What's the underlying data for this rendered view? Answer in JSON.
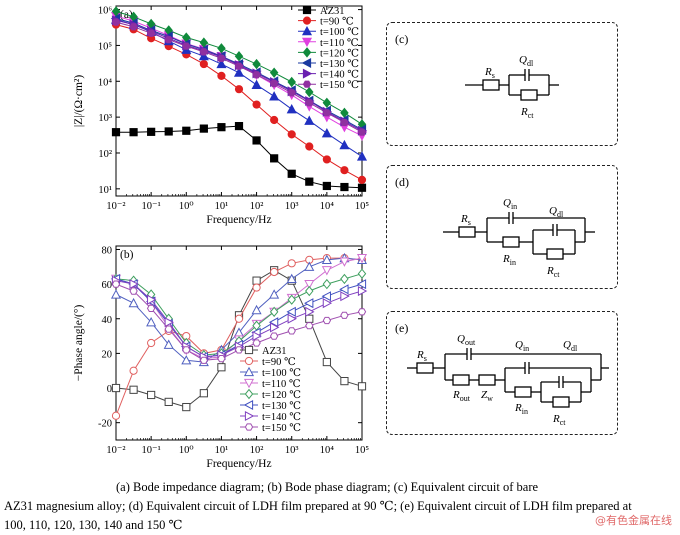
{
  "chart_data": [
    {
      "type": "line",
      "panel_label": "(a)",
      "xlabel": "Frequency/Hz",
      "ylabel": "|Z|/(Ω·cm²)",
      "xscale": "log",
      "yscale": "log",
      "xlim_exp": [
        -2,
        5
      ],
      "ylim_exp": [
        0.8,
        6.1
      ],
      "x_tick_labels": [
        "10⁻²",
        "10⁻¹",
        "10⁰",
        "10¹",
        "10²",
        "10³",
        "10⁴",
        "10⁵"
      ],
      "y_tick_labels": [
        "10¹",
        "10²",
        "10³",
        "10⁴",
        "10⁵",
        "10⁶"
      ],
      "legend_position": "top-right",
      "x_log10": [
        -2,
        -1.5,
        -1,
        -0.5,
        0,
        0.5,
        1,
        1.5,
        2,
        2.5,
        3,
        3.5,
        4,
        4.5,
        5
      ],
      "series": [
        {
          "name": "AZ31",
          "color": "#000000",
          "marker": "square",
          "log10_y": [
            2.58,
            2.58,
            2.59,
            2.6,
            2.62,
            2.68,
            2.72,
            2.75,
            2.35,
            1.85,
            1.42,
            1.2,
            1.08,
            1.05,
            1.03
          ]
        },
        {
          "name": "t=90 ℃",
          "color": "#e02020",
          "marker": "circle",
          "log10_y": [
            5.58,
            5.45,
            5.2,
            4.98,
            4.75,
            4.48,
            4.15,
            3.78,
            3.35,
            2.92,
            2.52,
            2.18,
            1.82,
            1.52,
            1.25
          ]
        },
        {
          "name": "t=100 ℃",
          "color": "#2030c0",
          "marker": "triangle-up",
          "log10_y": [
            5.72,
            5.58,
            5.38,
            5.12,
            4.88,
            4.7,
            4.48,
            4.24,
            3.9,
            3.58,
            3.22,
            2.9,
            2.55,
            2.22,
            1.9
          ]
        },
        {
          "name": "t=110 ℃",
          "color": "#e040e0",
          "marker": "triangle-down",
          "log10_y": [
            5.82,
            5.68,
            5.48,
            5.28,
            5.05,
            4.9,
            4.7,
            4.45,
            4.18,
            3.9,
            3.62,
            3.3,
            3.0,
            2.72,
            2.48
          ]
        },
        {
          "name": "t=120 ℃",
          "color": "#108a3c",
          "marker": "diamond",
          "log10_y": [
            5.95,
            5.8,
            5.6,
            5.42,
            5.22,
            5.08,
            4.92,
            4.7,
            4.48,
            4.24,
            3.98,
            3.7,
            3.4,
            3.12,
            2.8
          ]
        },
        {
          "name": "t=130 ℃",
          "color": "#1a3aa0",
          "marker": "triangle-left",
          "log10_y": [
            5.75,
            5.62,
            5.42,
            5.25,
            5.04,
            4.88,
            4.7,
            4.48,
            4.25,
            4.0,
            3.75,
            3.46,
            3.18,
            2.92,
            2.65
          ]
        },
        {
          "name": "t=140 ℃",
          "color": "#6a20b0",
          "marker": "triangle-right",
          "log10_y": [
            5.7,
            5.58,
            5.4,
            5.2,
            5.0,
            4.85,
            4.68,
            4.45,
            4.22,
            3.98,
            3.72,
            3.45,
            3.15,
            2.88,
            2.62
          ]
        },
        {
          "name": "t=150 ℃",
          "color": "#9030a0",
          "marker": "hexagon",
          "log10_y": [
            5.65,
            5.52,
            5.34,
            5.16,
            4.98,
            4.82,
            4.64,
            4.42,
            4.18,
            3.94,
            3.68,
            3.4,
            3.12,
            2.85,
            2.58
          ]
        }
      ]
    },
    {
      "type": "line",
      "panel_label": "(b)",
      "xlabel": "Frequency/Hz",
      "ylabel": "−Phase angle/(°)",
      "xscale": "log",
      "xlim_exp": [
        -2,
        5
      ],
      "ylim": [
        -30,
        82
      ],
      "y_ticks": [
        -20,
        0,
        20,
        40,
        60,
        80
      ],
      "x_tick_labels": [
        "10⁻²",
        "10⁻¹",
        "10⁰",
        "10¹",
        "10²",
        "10³",
        "10⁴",
        "10⁵"
      ],
      "legend_position": "bottom-center",
      "x_log10": [
        -2,
        -1.5,
        -1,
        -0.5,
        0,
        0.5,
        1,
        1.5,
        2,
        2.5,
        3,
        3.5,
        4,
        4.5,
        5
      ],
      "series": [
        {
          "name": "AZ31",
          "color": "#444444",
          "marker": "square",
          "y": [
            0,
            -1,
            -4,
            -8,
            -11,
            -3,
            12,
            42,
            62,
            68,
            62,
            40,
            15,
            4,
            1
          ]
        },
        {
          "name": "t=90 ℃",
          "color": "#e06060",
          "marker": "circle",
          "y": [
            -16,
            10,
            26,
            33,
            30,
            20,
            22,
            40,
            58,
            67,
            72,
            74,
            75,
            75,
            74
          ]
        },
        {
          "name": "t=100 ℃",
          "color": "#5060c0",
          "marker": "triangle-up",
          "y": [
            54,
            49,
            38,
            25,
            16,
            15,
            22,
            32,
            45,
            54,
            63,
            70,
            74,
            75,
            74
          ]
        },
        {
          "name": "t=110 ℃",
          "color": "#d070d0",
          "marker": "triangle-down",
          "y": [
            63,
            60,
            50,
            35,
            22,
            17,
            18,
            28,
            37,
            44,
            52,
            60,
            68,
            73,
            75
          ]
        },
        {
          "name": "t=120 ℃",
          "color": "#40a060",
          "marker": "diamond",
          "y": [
            63,
            62,
            54,
            40,
            26,
            19,
            20,
            27,
            36,
            44,
            51,
            56,
            60,
            63,
            66
          ]
        },
        {
          "name": "t=130 ℃",
          "color": "#4050c0",
          "marker": "triangle-left",
          "y": [
            63,
            60,
            50,
            37,
            24,
            18,
            19,
            25,
            32,
            38,
            44,
            49,
            53,
            57,
            60
          ]
        },
        {
          "name": "t=140 ℃",
          "color": "#8040c0",
          "marker": "triangle-right",
          "y": [
            62,
            60,
            51,
            38,
            24,
            18,
            19,
            24,
            30,
            35,
            40,
            44,
            49,
            53,
            56
          ]
        },
        {
          "name": "t=150 ℃",
          "color": "#a050b0",
          "marker": "hexagon",
          "y": [
            60,
            56,
            46,
            34,
            22,
            16,
            17,
            22,
            26,
            30,
            33,
            36,
            39,
            42,
            44
          ]
        }
      ]
    }
  ],
  "circuits": {
    "c": {
      "label": "(c)",
      "rs_main": "R",
      "rs_sub": "s",
      "q_main": "Q",
      "q_sub": "dl",
      "r_main": "R",
      "r_sub": "ct"
    },
    "d": {
      "label": "(d)",
      "rs_main": "R",
      "rs_sub": "s",
      "qin_main": "Q",
      "qin_sub": "in",
      "rin_main": "R",
      "rin_sub": "in",
      "qdl_main": "Q",
      "qdl_sub": "dl",
      "rct_main": "R",
      "rct_sub": "ct"
    },
    "e": {
      "label": "(e)",
      "rs_main": "R",
      "rs_sub": "s",
      "qout_main": "Q",
      "qout_sub": "out",
      "rout_main": "R",
      "rout_sub": "out",
      "zw_main": "Z",
      "zw_sub": "w",
      "qin_main": "Q",
      "qin_sub": "in",
      "rin_main": "R",
      "rin_sub": "in",
      "qdl_main": "Q",
      "qdl_sub": "dl",
      "rct_main": "R",
      "rct_sub": "ct"
    }
  },
  "caption": {
    "line1": "(a) Bode impedance diagram; (b) Bode phase diagram; (c) Equivalent circuit of bare",
    "line2": "AZ31 magnesium alloy; (d) Equivalent circuit of LDH film prepared at 90 ℃; (e) Equivalent circuit of LDH film prepared at",
    "line3": "100, 110, 120, 130, 140 and 150 ℃"
  },
  "watermark": "@有色金属在线"
}
